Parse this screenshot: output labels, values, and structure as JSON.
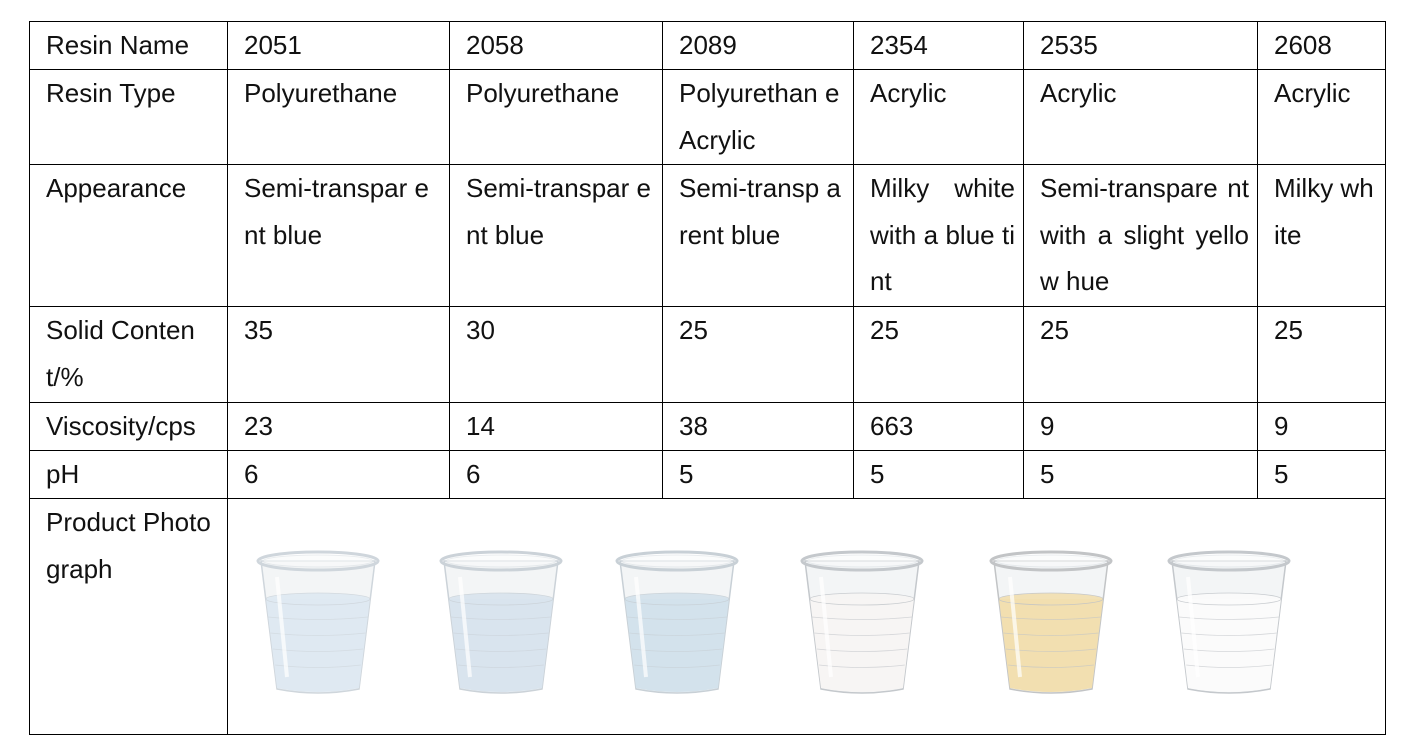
{
  "table": {
    "rows": {
      "name": {
        "label": "Resin Name",
        "values": [
          "2051",
          "2058",
          "2089",
          "2354",
          "2535",
          "2608"
        ]
      },
      "type": {
        "label": "Resin Type",
        "values": [
          "Polyurethane",
          "Polyurethane",
          "Polyurethan e Acrylic",
          "Acrylic",
          "Acrylic",
          "Acrylic"
        ]
      },
      "appearance": {
        "label": "Appearance",
        "values": [
          "Semi-transpar ent blue",
          "Semi-transpar ent blue",
          "Semi-transp arent blue",
          "Milky white with a blue tint",
          "Semi-transpare nt with a slight yellow hue",
          "Milky white"
        ]
      },
      "solid": {
        "label": "Solid Content/%",
        "values": [
          "35",
          "30",
          "25",
          "25",
          "25",
          "25"
        ]
      },
      "viscosity": {
        "label": "Viscosity/cps",
        "values": [
          "23",
          "14",
          "38",
          "663",
          "9",
          "9"
        ]
      },
      "ph": {
        "label": "pH",
        "values": [
          "6",
          "6",
          "5",
          "5",
          "5",
          "5"
        ]
      },
      "photo": {
        "label": "Product Photograph"
      }
    }
  },
  "cups": [
    {
      "liquid_color": "#dfe9f2",
      "rim_color": "#cfd6dc"
    },
    {
      "liquid_color": "#d9e4ee",
      "rim_color": "#cbd2d8"
    },
    {
      "liquid_color": "#d3e2ec",
      "rim_color": "#c8d0d6"
    },
    {
      "liquid_color": "#f7f5f4",
      "rim_color": "#c4c8cc"
    },
    {
      "liquid_color": "#f2dfb0",
      "rim_color": "#c2c4c6"
    },
    {
      "liquid_color": "#fbfbfb",
      "rim_color": "#c4c8cc"
    }
  ]
}
